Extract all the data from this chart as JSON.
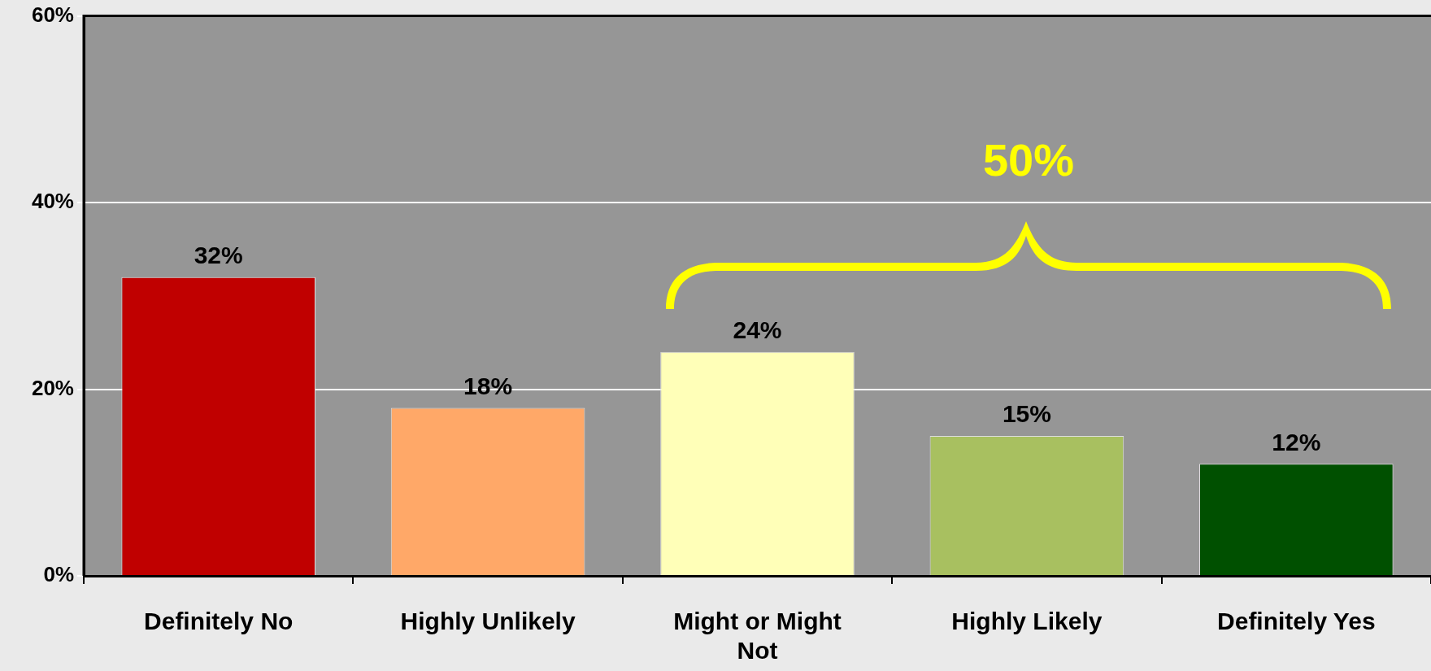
{
  "chart_data": {
    "type": "bar",
    "categories": [
      "Definitely No",
      "Highly Unlikely",
      "Might or Might Not",
      "Highly Likely",
      "Definitely Yes"
    ],
    "values": [
      32,
      18,
      24,
      15,
      12
    ],
    "value_labels": [
      "32%",
      "18%",
      "24%",
      "15%",
      "12%"
    ],
    "colors": [
      "#c00000",
      "#ffa868",
      "#ffffb8",
      "#a8c060",
      "#005000"
    ],
    "ylim": [
      0,
      60
    ],
    "yticks": [
      {
        "value": 0,
        "label": "0%"
      },
      {
        "value": 20,
        "label": "20%"
      },
      {
        "value": 40,
        "label": "40%"
      },
      {
        "value": 60,
        "label": "60%"
      }
    ],
    "grid": "y",
    "annotations": [
      "50%"
    ]
  }
}
